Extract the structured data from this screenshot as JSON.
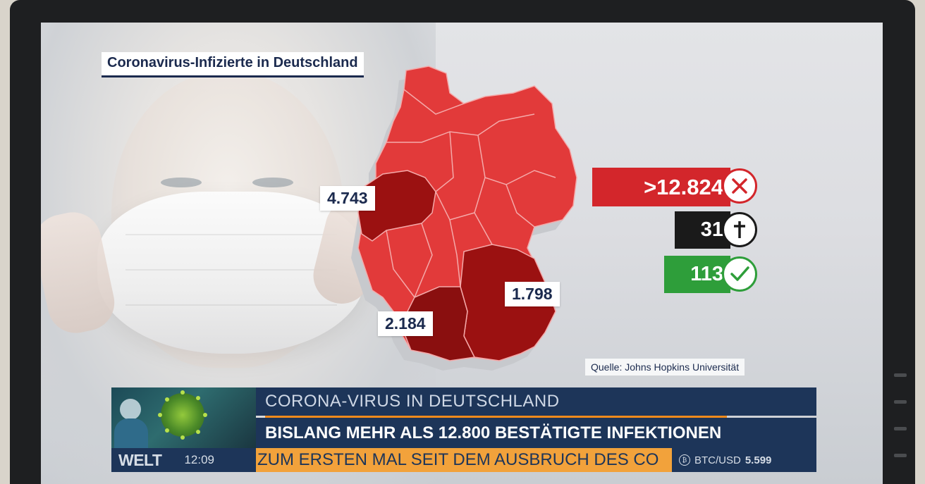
{
  "title": "Coronavirus-Infizierte in Deutschland",
  "map_labels": {
    "nrw": "4.743",
    "bayern": "1.798",
    "bw": "2.184"
  },
  "stats": {
    "infected": {
      "value": ">12.824",
      "color": "#d3262b",
      "icon": "close-icon"
    },
    "deaths": {
      "value": "31",
      "color": "#1a1a1a",
      "icon": "cross-icon"
    },
    "recovered": {
      "value": "113",
      "color": "#2e9e3a",
      "icon": "check-icon"
    }
  },
  "source": "Quelle: Johns Hopkins Universität",
  "ticker": {
    "line1": "CORONA-VIRUS IN DEUTSCHLAND",
    "line2": "BISLANG MEHR ALS 12.800 BESTÄTIGTE INFEKTIONEN",
    "crawl": "ZUM ERSTEN MAL SEIT DEM AUSBRUCH DES CO",
    "logo": "WELT",
    "time": "12:09",
    "btc_label": "BTC/USD",
    "btc_value": "5.599"
  },
  "colors": {
    "map_light": "#e23a3a",
    "map_dark": "#9b1111",
    "navy": "#1d3559",
    "orange": "#f2a23b"
  }
}
